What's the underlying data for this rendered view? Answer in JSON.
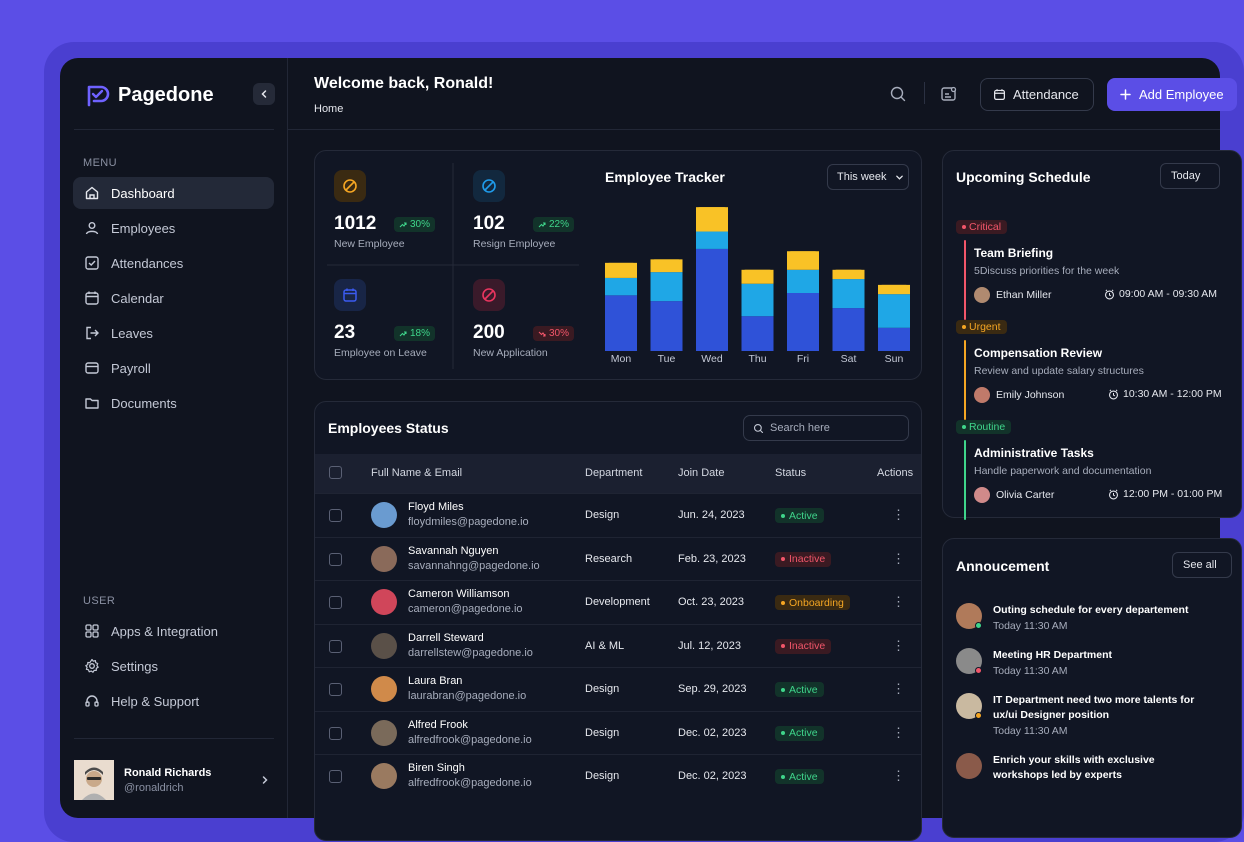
{
  "brand": {
    "name": "Pagedone"
  },
  "sidebar": {
    "menu_label": "MENU",
    "menu": [
      {
        "label": "Dashboard",
        "icon": "home-icon",
        "active": true
      },
      {
        "label": "Employees",
        "icon": "user-icon"
      },
      {
        "label": "Attendances",
        "icon": "check-square-icon"
      },
      {
        "label": "Calendar",
        "icon": "calendar-icon"
      },
      {
        "label": "Leaves",
        "icon": "logout-icon"
      },
      {
        "label": "Payroll",
        "icon": "stack-icon"
      },
      {
        "label": "Documents",
        "icon": "folder-icon"
      }
    ],
    "user_label": "USER",
    "user_menu": [
      {
        "label": "Apps & Integration",
        "icon": "grid-icon"
      },
      {
        "label": "Settings",
        "icon": "gear-icon"
      },
      {
        "label": "Help & Support",
        "icon": "headset-icon"
      }
    ],
    "profile": {
      "name": "Ronald Richards",
      "handle": "@ronaldrich"
    }
  },
  "header": {
    "welcome": "Welcome back, Ronald!",
    "breadcrumb": "Home",
    "attendance_label": "Attendance",
    "add_label": "Add Employee"
  },
  "stats": [
    {
      "value": "1012",
      "change": "30%",
      "trend": "up",
      "label": "New Employee",
      "icon": "ban-icon",
      "color": "#f5a623"
    },
    {
      "value": "102",
      "change": "22%",
      "trend": "up",
      "label": "Resign Employee",
      "icon": "ban-icon",
      "color": "#1f9bea"
    },
    {
      "value": "23",
      "change": "18%",
      "trend": "up",
      "label": "Employee on Leave",
      "icon": "calendar-icon",
      "color": "#3b5bf0"
    },
    {
      "value": "200",
      "change": "30%",
      "trend": "down",
      "label": "New Application",
      "icon": "ban-icon",
      "color": "#e9355f"
    }
  ],
  "tracker": {
    "title": "Employee Tracker",
    "range": "This week"
  },
  "chart_data": {
    "type": "bar",
    "stacked": true,
    "categories": [
      "Mon",
      "Tue",
      "Wed",
      "Thu",
      "Fri",
      "Sat",
      "Sun"
    ],
    "series": [
      {
        "color": "#2f52d8",
        "values": [
          48,
          43,
          88,
          30,
          50,
          37,
          20
        ]
      },
      {
        "color": "#1fa7e6",
        "values": [
          15,
          25,
          15,
          28,
          20,
          25,
          29
        ]
      },
      {
        "color": "#f9c226",
        "values": [
          13,
          11,
          21,
          12,
          16,
          8,
          8
        ]
      }
    ]
  },
  "employees_status": {
    "title": "Employees Status",
    "search_placeholder": "Search here",
    "columns": {
      "name": "Full Name & Email",
      "department": "Department",
      "join_date": "Join Date",
      "status": "Status",
      "actions": "Actions"
    },
    "rows": [
      {
        "name": "Floyd Miles",
        "email": "floydmiles@pagedone.io",
        "department": "Design",
        "join_date": "Jun. 24, 2023",
        "status": "Active",
        "kind": "active",
        "avatar": "#6a9bd0"
      },
      {
        "name": "Savannah Nguyen",
        "email": "savannahng@pagedone.io",
        "department": "Research",
        "join_date": "Feb. 23, 2023",
        "status": "Inactive",
        "kind": "inactive",
        "avatar": "#8a6a5a"
      },
      {
        "name": "Cameron Williamson",
        "email": "cameron@pagedone.io",
        "department": "Development",
        "join_date": "Oct. 23, 2023",
        "status": "Onboarding",
        "kind": "onboard",
        "avatar": "#d0465a"
      },
      {
        "name": "Darrell Steward",
        "email": "darrellstew@pagedone.io",
        "department": "AI & ML",
        "join_date": "Jul. 12, 2023",
        "status": "Inactive",
        "kind": "inactive",
        "avatar": "#5a5048"
      },
      {
        "name": "Laura Bran",
        "email": "laurabran@pagedone.io",
        "department": "Design",
        "join_date": "Sep. 29, 2023",
        "status": "Active",
        "kind": "active",
        "avatar": "#d08a4a"
      },
      {
        "name": "Alfred Frook",
        "email": "alfredfrook@pagedone.io",
        "department": "Design",
        "join_date": "Dec. 02, 2023",
        "status": "Active",
        "kind": "active",
        "avatar": "#7a6a5a"
      },
      {
        "name": "Biren Singh",
        "email": "alfredfrook@pagedone.io",
        "department": "Design",
        "join_date": "Dec. 02, 2023",
        "status": "Active",
        "kind": "active",
        "avatar": "#9a7a60"
      }
    ]
  },
  "schedule": {
    "title": "Upcoming Schedule",
    "filter": "Today",
    "events": [
      {
        "priority": "Critical",
        "color": "#f2566a",
        "bg": "#3a1a22",
        "title": "Team Briefing",
        "desc": "5Discuss priorities for the week",
        "person": "Ethan Miller",
        "time": "09:00 AM - 09:30 AM",
        "avatar": "#b08a70"
      },
      {
        "priority": "Urgent",
        "color": "#f5a623",
        "bg": "#3a2a12",
        "title": "Compensation Review",
        "desc": "Review and update salary structures",
        "person": "Emily Johnson",
        "time": "10:30 AM - 12:00 PM",
        "avatar": "#c07a6a"
      },
      {
        "priority": "Routine",
        "color": "#3fd58b",
        "bg": "#12332a",
        "title": "Administrative Tasks",
        "desc": "Handle paperwork and documentation",
        "person": "Olivia Carter",
        "time": "12:00 PM - 01:00 PM",
        "avatar": "#d08a8a"
      }
    ]
  },
  "announcement": {
    "title": "Annoucement",
    "see_all": "See all",
    "items": [
      {
        "text": "Outing schedule for every departement",
        "time": "Today 11:30 AM",
        "status_color": "#3fd58b",
        "avatar": "#b07a5a"
      },
      {
        "text": "Meeting HR Department",
        "time": "Today 11:30 AM",
        "status_color": "#f2566a",
        "avatar": "#8a8a8a"
      },
      {
        "text": "IT Department need two more talents for ux/ui Designer position",
        "text2": "ux/ui Designer position",
        "text1": "IT Department need two more talents for",
        "time": "Today 11:30 AM",
        "status_color": "#f5a623",
        "avatar": "#c9b9a0"
      },
      {
        "text1": "Enrich your skills with exclusive",
        "text2": "workshops led by experts",
        "avatar": "#8a5a4a"
      }
    ]
  }
}
